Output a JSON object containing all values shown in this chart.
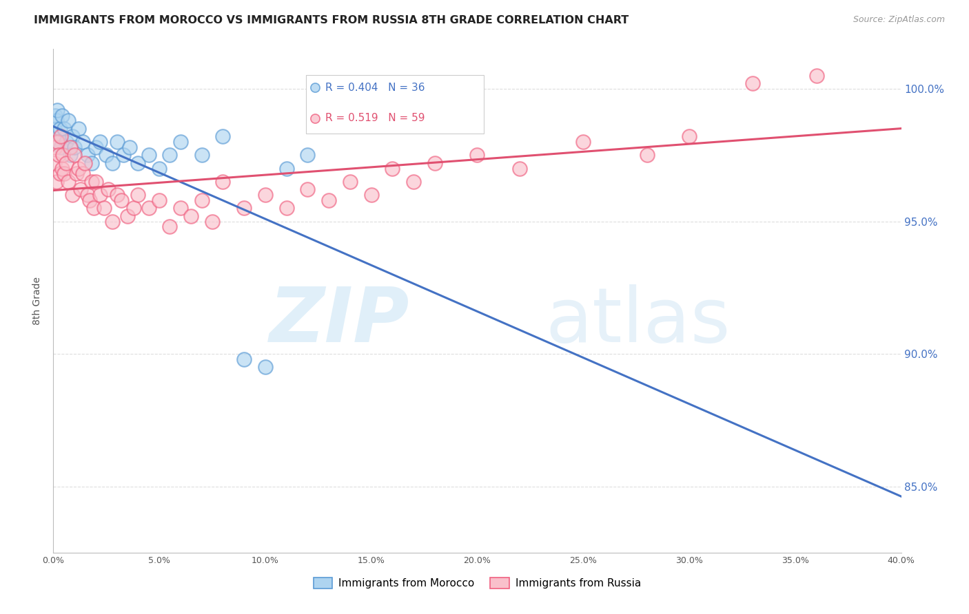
{
  "title": "IMMIGRANTS FROM MOROCCO VS IMMIGRANTS FROM RUSSIA 8TH GRADE CORRELATION CHART",
  "source": "Source: ZipAtlas.com",
  "ylabel": "8th Grade",
  "xlim": [
    0.0,
    40.0
  ],
  "ylim": [
    82.5,
    101.5
  ],
  "y_ticks": [
    85.0,
    90.0,
    95.0,
    100.0
  ],
  "y_tick_labels": [
    "85.0%",
    "90.0%",
    "95.0%",
    "100.0%"
  ],
  "x_ticks": [
    0.0,
    5.0,
    10.0,
    15.0,
    20.0,
    25.0,
    30.0,
    35.0,
    40.0
  ],
  "x_tick_labels": [
    "0.0%",
    "5.0%",
    "10.0%",
    "15.0%",
    "20.0%",
    "25.0%",
    "30.0%",
    "35.0%",
    "40.0%"
  ],
  "legend_morocco": "Immigrants from Morocco",
  "legend_russia": "Immigrants from Russia",
  "r_morocco": 0.404,
  "n_morocco": 36,
  "r_russia": 0.519,
  "n_russia": 59,
  "color_morocco_face": "#aed4f0",
  "color_morocco_edge": "#5b9bd5",
  "color_russia_face": "#f9c0cb",
  "color_russia_edge": "#f06080",
  "trendline_morocco": "#4472c4",
  "trendline_russia": "#e05070",
  "morocco_x": [
    0.05,
    0.1,
    0.15,
    0.2,
    0.25,
    0.3,
    0.35,
    0.4,
    0.5,
    0.6,
    0.7,
    0.8,
    0.9,
    1.0,
    1.2,
    1.4,
    1.6,
    1.8,
    2.0,
    2.2,
    2.5,
    2.8,
    3.0,
    3.3,
    3.6,
    4.0,
    4.5,
    5.0,
    5.5,
    6.0,
    7.0,
    8.0,
    9.0,
    10.0,
    11.0,
    12.0
  ],
  "morocco_y": [
    98.5,
    99.0,
    98.8,
    99.2,
    98.0,
    98.5,
    97.8,
    99.0,
    98.5,
    98.0,
    98.8,
    97.5,
    98.2,
    97.8,
    98.5,
    98.0,
    97.5,
    97.2,
    97.8,
    98.0,
    97.5,
    97.2,
    98.0,
    97.5,
    97.8,
    97.2,
    97.5,
    97.0,
    97.5,
    98.0,
    97.5,
    98.2,
    89.8,
    89.5,
    97.0,
    97.5
  ],
  "russia_x": [
    0.05,
    0.1,
    0.15,
    0.2,
    0.25,
    0.3,
    0.35,
    0.4,
    0.45,
    0.5,
    0.6,
    0.7,
    0.8,
    0.9,
    1.0,
    1.1,
    1.2,
    1.3,
    1.4,
    1.5,
    1.6,
    1.7,
    1.8,
    1.9,
    2.0,
    2.2,
    2.4,
    2.6,
    2.8,
    3.0,
    3.2,
    3.5,
    3.8,
    4.0,
    4.5,
    5.0,
    5.5,
    6.0,
    6.5,
    7.0,
    7.5,
    8.0,
    9.0,
    10.0,
    11.0,
    12.0,
    13.0,
    14.0,
    15.0,
    16.0,
    17.0,
    18.0,
    20.0,
    22.0,
    25.0,
    28.0,
    30.0,
    33.0,
    36.0
  ],
  "russia_y": [
    97.2,
    97.8,
    96.5,
    98.0,
    97.5,
    96.8,
    98.2,
    97.0,
    97.5,
    96.8,
    97.2,
    96.5,
    97.8,
    96.0,
    97.5,
    96.8,
    97.0,
    96.2,
    96.8,
    97.2,
    96.0,
    95.8,
    96.5,
    95.5,
    96.5,
    96.0,
    95.5,
    96.2,
    95.0,
    96.0,
    95.8,
    95.2,
    95.5,
    96.0,
    95.5,
    95.8,
    94.8,
    95.5,
    95.2,
    95.8,
    95.0,
    96.5,
    95.5,
    96.0,
    95.5,
    96.2,
    95.8,
    96.5,
    96.0,
    97.0,
    96.5,
    97.2,
    97.5,
    97.0,
    98.0,
    97.5,
    98.2,
    100.2,
    100.5
  ]
}
